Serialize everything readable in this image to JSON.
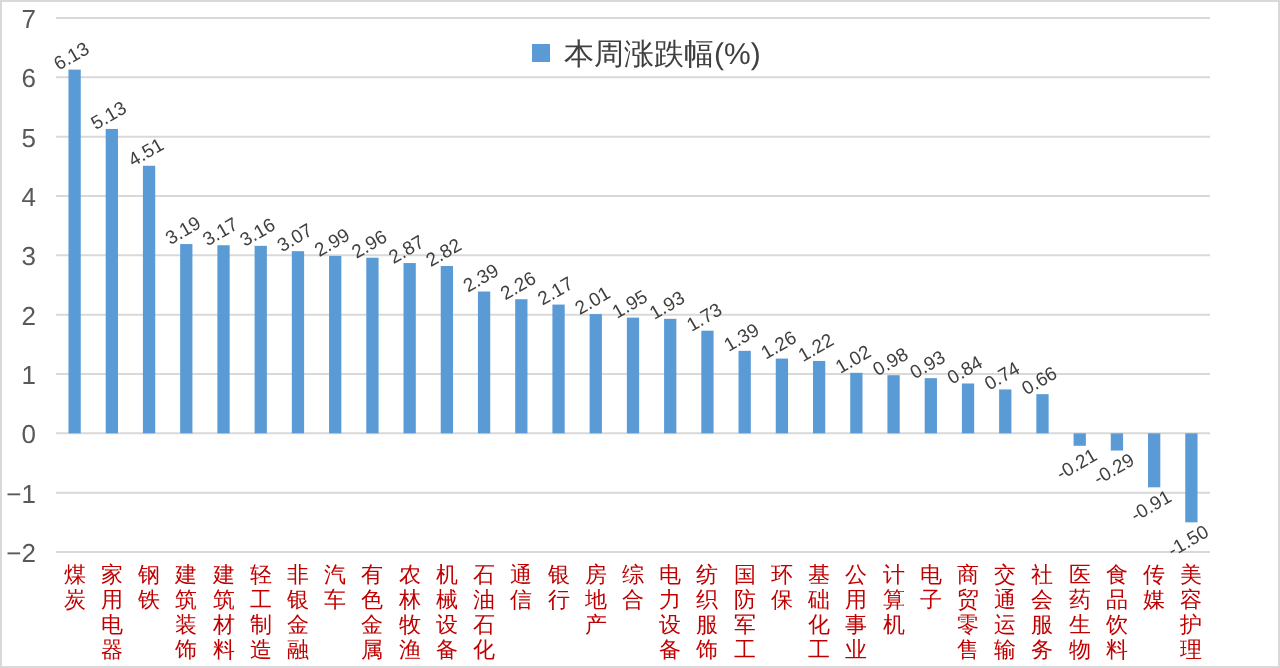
{
  "chart_data": {
    "type": "bar",
    "categories": [
      "煤炭",
      "家用电器",
      "钢铁",
      "建筑装饰",
      "建筑材料",
      "轻工制造",
      "非银金融",
      "汽车",
      "有色金属",
      "农林牧渔",
      "机械设备",
      "石油石化",
      "通信",
      "银行",
      "房地产",
      "综合",
      "电力设备",
      "纺织服饰",
      "国防军工",
      "环保",
      "基础化工",
      "公用事业",
      "计算机",
      "电子",
      "商贸零售",
      "交通运输",
      "社会服务",
      "医药生物",
      "食品饮料",
      "传媒",
      "美容护理"
    ],
    "series": [
      {
        "name": "本周涨跌幅(%)",
        "color": "#5b9bd5",
        "values": [
          6.13,
          5.13,
          4.51,
          3.19,
          3.17,
          3.16,
          3.07,
          2.99,
          2.96,
          2.87,
          2.82,
          2.39,
          2.26,
          2.17,
          2.01,
          1.95,
          1.93,
          1.73,
          1.39,
          1.26,
          1.22,
          1.02,
          0.98,
          0.93,
          0.84,
          0.74,
          0.66,
          -0.21,
          -0.29,
          -0.91,
          -1.5
        ],
        "value_labels": [
          "6.13",
          "5.13",
          "4.51",
          "3.19",
          "3.17",
          "3.16",
          "3.07",
          "2.99",
          "2.96",
          "2.87",
          "2.82",
          "2.39",
          "2.26",
          "2.17",
          "2.01",
          "1.95",
          "1.93",
          "1.73",
          "1.39",
          "1.26",
          "1.22",
          "1.02",
          "0.98",
          "0.93",
          "0.84",
          "0.74",
          "0.66",
          "-0.21",
          "-0.29",
          "-0.91",
          "-1.50"
        ]
      }
    ],
    "ylim": [
      -2,
      7
    ],
    "yticks": [
      -2,
      -1,
      0,
      1,
      2,
      3,
      4,
      5,
      6,
      7
    ],
    "grid": "y",
    "legend": "top"
  }
}
